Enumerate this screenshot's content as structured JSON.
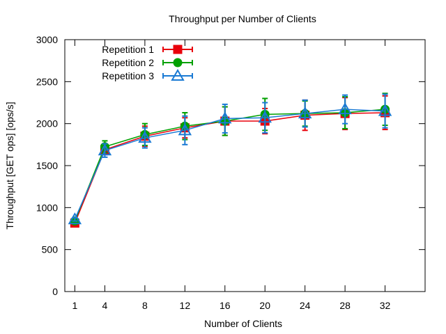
{
  "chart_data": {
    "type": "line",
    "title": "Throughput per Number of Clients",
    "xlabel": "Number of Clients",
    "ylabel": "Throughput [GET ops] [ops/s]",
    "xlim": [
      0,
      36
    ],
    "ylim": [
      0,
      3000
    ],
    "xticks": [
      1,
      4,
      8,
      12,
      16,
      20,
      24,
      28,
      32
    ],
    "yticks": [
      0,
      500,
      1000,
      1500,
      2000,
      2500,
      3000
    ],
    "legend_position": "top-left",
    "grid": false,
    "x": [
      1,
      4,
      8,
      12,
      16,
      20,
      24,
      28,
      32
    ],
    "series": [
      {
        "name": "Repetition 1",
        "color": "#e8000b",
        "marker": "square",
        "values": [
          815,
          1690,
          1850,
          1950,
          2030,
          2030,
          2100,
          2120,
          2130
        ],
        "err": [
          20,
          60,
          120,
          120,
          170,
          150,
          180,
          190,
          200
        ]
      },
      {
        "name": "Repetition 2",
        "color": "#00a000",
        "marker": "circle",
        "values": [
          840,
          1725,
          1870,
          1970,
          2030,
          2110,
          2120,
          2130,
          2170
        ],
        "err": [
          20,
          70,
          130,
          160,
          170,
          190,
          150,
          190,
          190
        ]
      },
      {
        "name": "Repetition 3",
        "color": "#1a7ad4",
        "marker": "triangle",
        "values": [
          860,
          1680,
          1830,
          1920,
          2060,
          2070,
          2120,
          2170,
          2150
        ],
        "err": [
          20,
          80,
          120,
          170,
          170,
          180,
          160,
          170,
          200
        ]
      }
    ]
  }
}
